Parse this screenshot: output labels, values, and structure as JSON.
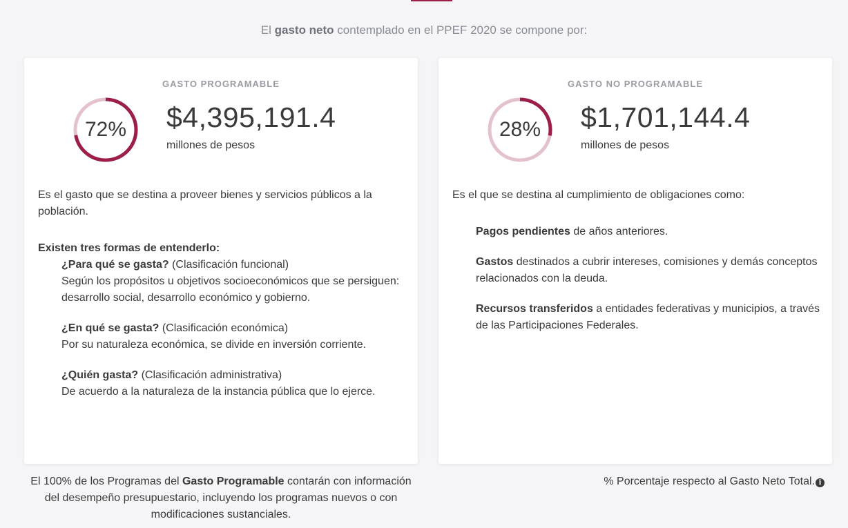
{
  "intro": {
    "prefix": "El ",
    "bold": "gasto neto",
    "suffix": " contemplado en el PPEF 2020 se compone por:"
  },
  "programable": {
    "label": "GASTO PROGRAMABLE",
    "percent_text": "72%",
    "percent": 72,
    "amount": "$4,395,191.4",
    "unit": "millones de pesos",
    "description": "Es el gasto que se destina a proveer bienes y servicios públicos a la población.",
    "forms_title": "Existen tres formas de entenderlo:",
    "forms": [
      {
        "question": "¿Para qué se gasta?",
        "classification": " (Clasificación funcional)",
        "text": "Según los propósitos u objetivos socioeconómicos que se persiguen: desarrollo social, desarrollo económico y gobierno."
      },
      {
        "question": "¿En qué se gasta?",
        "classification": " (Clasificación económica)",
        "text": "Por su naturaleza económica, se divide en inversión corriente."
      },
      {
        "question": "¿Quién gasta?",
        "classification": " (Clasificación administrativa)",
        "text": "De acuerdo a la naturaleza de la instancia pública que lo ejerce."
      }
    ]
  },
  "no_programable": {
    "label": "GASTO NO PROGRAMABLE",
    "percent_text": "28%",
    "percent": 28,
    "amount": "$1,701,144.4",
    "unit": "millones de pesos",
    "description": "Es el que se destina al cumplimiento de obligaciones como:",
    "items": [
      {
        "bold": "Pagos pendientes",
        "text": " de años anteriores."
      },
      {
        "bold": "Gastos",
        "text": " destinados a cubrir intereses, comisiones y demás conceptos relacionados con la deuda."
      },
      {
        "bold": "Recursos transferidos",
        "text": " a entidades federativas y municipios, a través de las Participaciones Federales."
      }
    ]
  },
  "footer": {
    "left_prefix": "El 100% de los Programas del ",
    "left_bold": "Gasto Programable",
    "left_suffix": " contarán con información del desempeño presupuestario, incluyendo los programas nuevos o con modificaciones sustanciales.",
    "right": "% Porcentaje respecto al Gasto Neto Total."
  },
  "colors": {
    "accent": "#9b1f46",
    "track": "#e3c2cd"
  },
  "icons": {
    "info": "info-circle-icon"
  }
}
